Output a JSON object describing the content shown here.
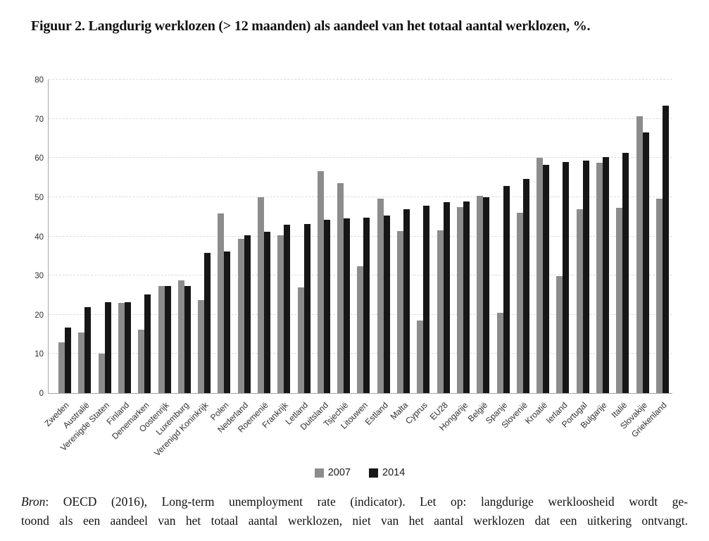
{
  "title": "Figuur 2. Langdurig werklozen (> 12 maanden) als aandeel van het totaal aantal werklozen, %.",
  "chart_data": {
    "type": "bar",
    "title": "Figuur 2. Langdurig werklozen (> 12 maanden) als aandeel van het totaal aantal werklozen, %.",
    "categories": [
      "Zweden",
      "Australië",
      "Verenigde Staten",
      "Finland",
      "Denemarken",
      "Oostenrijk",
      "Luxemburg",
      "Verenigd Koninkrijk",
      "Polen",
      "Nederland",
      "Roemenië",
      "Frankrijk",
      "Letland",
      "Duitsland",
      "Tsjechië",
      "Litouwen",
      "Estland",
      "Malta",
      "Cyprus",
      "EU28",
      "Hongarije",
      "België",
      "Spanje",
      "Slovenië",
      "Kroatië",
      "Ierland",
      "Portugal",
      "Bulgarije",
      "Italië",
      "Slovakije",
      "Griekenland"
    ],
    "series": [
      {
        "name": "2007",
        "color": "#8c8c8c",
        "values": [
          13.0,
          15.4,
          10.0,
          23.0,
          16.1,
          27.3,
          28.7,
          23.7,
          45.9,
          39.4,
          50.0,
          40.2,
          27.0,
          56.7,
          53.5,
          32.4,
          49.7,
          41.3,
          18.6,
          41.6,
          47.4,
          50.4,
          20.5,
          46.0,
          60.1,
          29.8,
          46.9,
          58.8,
          47.2,
          70.7,
          49.6
        ]
      },
      {
        "name": "2014",
        "color": "#161616",
        "values": [
          16.8,
          21.9,
          23.2,
          23.2,
          25.2,
          27.3,
          27.4,
          35.7,
          36.1,
          40.2,
          41.1,
          42.9,
          43.1,
          44.3,
          44.6,
          44.8,
          45.3,
          47.0,
          47.8,
          48.8,
          48.9,
          50.0,
          52.8,
          54.6,
          58.3,
          59.0,
          59.3,
          60.2,
          61.3,
          66.6,
          73.4
        ]
      }
    ],
    "xlabel": "",
    "ylabel": "",
    "ylim": [
      0,
      80
    ],
    "yticks": [
      0,
      10,
      20,
      30,
      40,
      50,
      60,
      70,
      80
    ],
    "grid": "horizontal-dashed",
    "legend_position": "bottom-center"
  },
  "source": {
    "bron": "Bron",
    "line1": ": OECD (2016), Long-term unemployment rate (indicator). Let op: langdurige werkloosheid wordt ge-",
    "line2": "toond als een aandeel van het totaal aantal werklozen, niet van het aantal werklozen dat een uitkering ontvangt."
  }
}
